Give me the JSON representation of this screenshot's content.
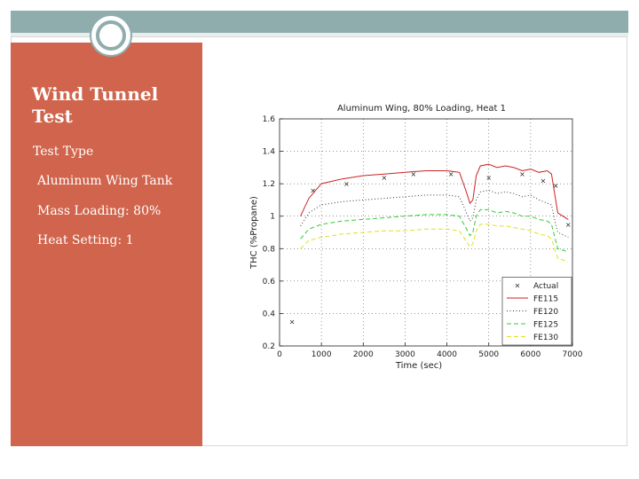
{
  "slide": {
    "title": "Wind Tunnel Test",
    "lines": [
      "Test Type",
      "Aluminum Wing Tank",
      "Mass Loading: 80%",
      "Heat Setting: 1"
    ]
  },
  "colors": {
    "panel": "#d0644c",
    "bars": "#8fadac",
    "series": [
      "#222222",
      "#cc2222",
      "#333333",
      "#33cc33",
      "#e0e020"
    ]
  },
  "chart_data": {
    "type": "line",
    "title": "Aluminum Wing, 80% Loading, Heat 1",
    "xlabel": "Time (sec)",
    "ylabel": "THC (%Propane)",
    "xlim": [
      0,
      7000
    ],
    "ylim": [
      0.2,
      1.6
    ],
    "xticks": [
      0,
      1000,
      2000,
      3000,
      4000,
      5000,
      6000,
      7000
    ],
    "yticks": [
      0.2,
      0.4,
      0.6,
      0.8,
      1,
      1.2,
      1.4,
      1.6
    ],
    "grid": true,
    "legend": "bottom-right",
    "series": [
      {
        "name": "Actual",
        "style": "marker",
        "points": [
          [
            300,
            0.35
          ],
          [
            800,
            1.16
          ],
          [
            1600,
            1.2
          ],
          [
            2500,
            1.24
          ],
          [
            3200,
            1.26
          ],
          [
            4100,
            1.26
          ],
          [
            5000,
            1.24
          ],
          [
            5800,
            1.26
          ],
          [
            6300,
            1.22
          ],
          [
            6600,
            1.19
          ],
          [
            6900,
            0.95
          ]
        ]
      },
      {
        "name": "FE115",
        "style": "solid",
        "points": [
          [
            500,
            1.0
          ],
          [
            700,
            1.11
          ],
          [
            1000,
            1.2
          ],
          [
            1500,
            1.23
          ],
          [
            2000,
            1.25
          ],
          [
            2500,
            1.26
          ],
          [
            3000,
            1.27
          ],
          [
            3500,
            1.28
          ],
          [
            4000,
            1.28
          ],
          [
            4300,
            1.27
          ],
          [
            4450,
            1.16
          ],
          [
            4550,
            1.08
          ],
          [
            4620,
            1.1
          ],
          [
            4700,
            1.25
          ],
          [
            4800,
            1.31
          ],
          [
            5000,
            1.32
          ],
          [
            5200,
            1.3
          ],
          [
            5400,
            1.31
          ],
          [
            5600,
            1.3
          ],
          [
            5800,
            1.28
          ],
          [
            6000,
            1.29
          ],
          [
            6200,
            1.27
          ],
          [
            6400,
            1.28
          ],
          [
            6500,
            1.26
          ],
          [
            6600,
            1.1
          ],
          [
            6650,
            1.02
          ],
          [
            6900,
            0.98
          ]
        ]
      },
      {
        "name": "FE120",
        "style": "dotted",
        "points": [
          [
            500,
            0.94
          ],
          [
            700,
            1.02
          ],
          [
            1000,
            1.07
          ],
          [
            1500,
            1.09
          ],
          [
            2000,
            1.1
          ],
          [
            2500,
            1.11
          ],
          [
            3000,
            1.12
          ],
          [
            3500,
            1.13
          ],
          [
            4000,
            1.13
          ],
          [
            4300,
            1.12
          ],
          [
            4450,
            1.03
          ],
          [
            4550,
            0.97
          ],
          [
            4620,
            0.99
          ],
          [
            4700,
            1.1
          ],
          [
            4800,
            1.15
          ],
          [
            5000,
            1.16
          ],
          [
            5200,
            1.14
          ],
          [
            5400,
            1.15
          ],
          [
            5600,
            1.14
          ],
          [
            5800,
            1.12
          ],
          [
            6000,
            1.13
          ],
          [
            6200,
            1.1
          ],
          [
            6400,
            1.08
          ],
          [
            6500,
            1.07
          ],
          [
            6600,
            0.95
          ],
          [
            6650,
            0.9
          ],
          [
            6900,
            0.87
          ]
        ]
      },
      {
        "name": "FE125",
        "style": "dashed",
        "points": [
          [
            500,
            0.86
          ],
          [
            700,
            0.92
          ],
          [
            1000,
            0.95
          ],
          [
            1500,
            0.97
          ],
          [
            2000,
            0.98
          ],
          [
            2500,
            0.99
          ],
          [
            3000,
            1.0
          ],
          [
            3500,
            1.01
          ],
          [
            4000,
            1.01
          ],
          [
            4300,
            1.0
          ],
          [
            4450,
            0.93
          ],
          [
            4550,
            0.88
          ],
          [
            4620,
            0.9
          ],
          [
            4700,
            1.0
          ],
          [
            4800,
            1.04
          ],
          [
            5000,
            1.04
          ],
          [
            5200,
            1.02
          ],
          [
            5400,
            1.03
          ],
          [
            5600,
            1.02
          ],
          [
            5800,
            1.0
          ],
          [
            6000,
            1.0
          ],
          [
            6200,
            0.98
          ],
          [
            6400,
            0.97
          ],
          [
            6500,
            0.95
          ],
          [
            6600,
            0.85
          ],
          [
            6650,
            0.8
          ],
          [
            6900,
            0.78
          ]
        ]
      },
      {
        "name": "FE130",
        "style": "dashed",
        "points": [
          [
            500,
            0.8
          ],
          [
            700,
            0.85
          ],
          [
            1000,
            0.87
          ],
          [
            1500,
            0.89
          ],
          [
            2000,
            0.9
          ],
          [
            2500,
            0.91
          ],
          [
            3000,
            0.91
          ],
          [
            3500,
            0.92
          ],
          [
            4000,
            0.92
          ],
          [
            4300,
            0.91
          ],
          [
            4450,
            0.85
          ],
          [
            4550,
            0.81
          ],
          [
            4620,
            0.83
          ],
          [
            4700,
            0.91
          ],
          [
            4800,
            0.95
          ],
          [
            5000,
            0.95
          ],
          [
            5200,
            0.94
          ],
          [
            5400,
            0.94
          ],
          [
            5600,
            0.93
          ],
          [
            5800,
            0.92
          ],
          [
            6000,
            0.91
          ],
          [
            6200,
            0.89
          ],
          [
            6400,
            0.88
          ],
          [
            6500,
            0.86
          ],
          [
            6600,
            0.78
          ],
          [
            6650,
            0.74
          ],
          [
            6900,
            0.72
          ]
        ]
      }
    ]
  }
}
